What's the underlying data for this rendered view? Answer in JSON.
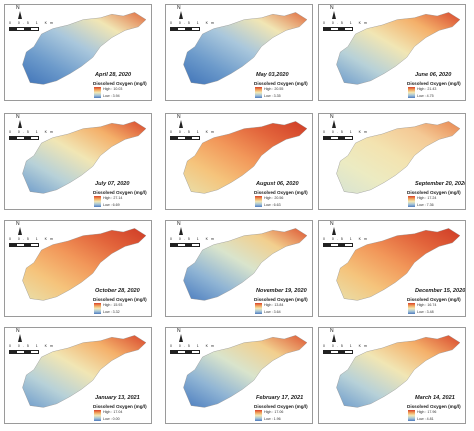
{
  "legend_title": "Dissolved Oxygen (mg/l)",
  "high_label": "High :",
  "low_label": "Low :",
  "north_label": "N",
  "scale_ticks": "0  0.5  1",
  "scale_unit": "Km",
  "panels": [
    {
      "date": "April 28, 2020",
      "high": "10.03",
      "low": "3.94",
      "palette": "blue_dominant"
    },
    {
      "date": "May 03,2020",
      "high": "20.55",
      "low": "3.35",
      "palette": "blue_dominant"
    },
    {
      "date": "June 06, 2020",
      "high": "21.43",
      "low": "4.75",
      "palette": "mixed"
    },
    {
      "date": "July 07, 2020",
      "high": "27.14",
      "low": "6.69",
      "palette": "mixed"
    },
    {
      "date": "August 06, 2020",
      "high": "20.56",
      "low": "6.63",
      "palette": "warm"
    },
    {
      "date": "September 20, 2020",
      "high": "17.24",
      "low": "7.36",
      "palette": "pale"
    },
    {
      "date": "October  28, 2020",
      "high": "15.93",
      "low": "3.32",
      "palette": "warm"
    },
    {
      "date": "November 19, 2020",
      "high": "13.84",
      "low": "3.64",
      "palette": "blue_mixed"
    },
    {
      "date": "December 15, 2020",
      "high": "16.74",
      "low": "3.48",
      "palette": "warm"
    },
    {
      "date": "January 13, 2021",
      "high": "17.04",
      "low": "0.00",
      "palette": "mixed"
    },
    {
      "date": "February 17, 2021",
      "high": "17.06",
      "low": "1.96",
      "palette": "blue_mixed"
    },
    {
      "date": "March 14, 2021",
      "high": "17.96",
      "low": "4.81",
      "palette": "mixed"
    }
  ]
}
